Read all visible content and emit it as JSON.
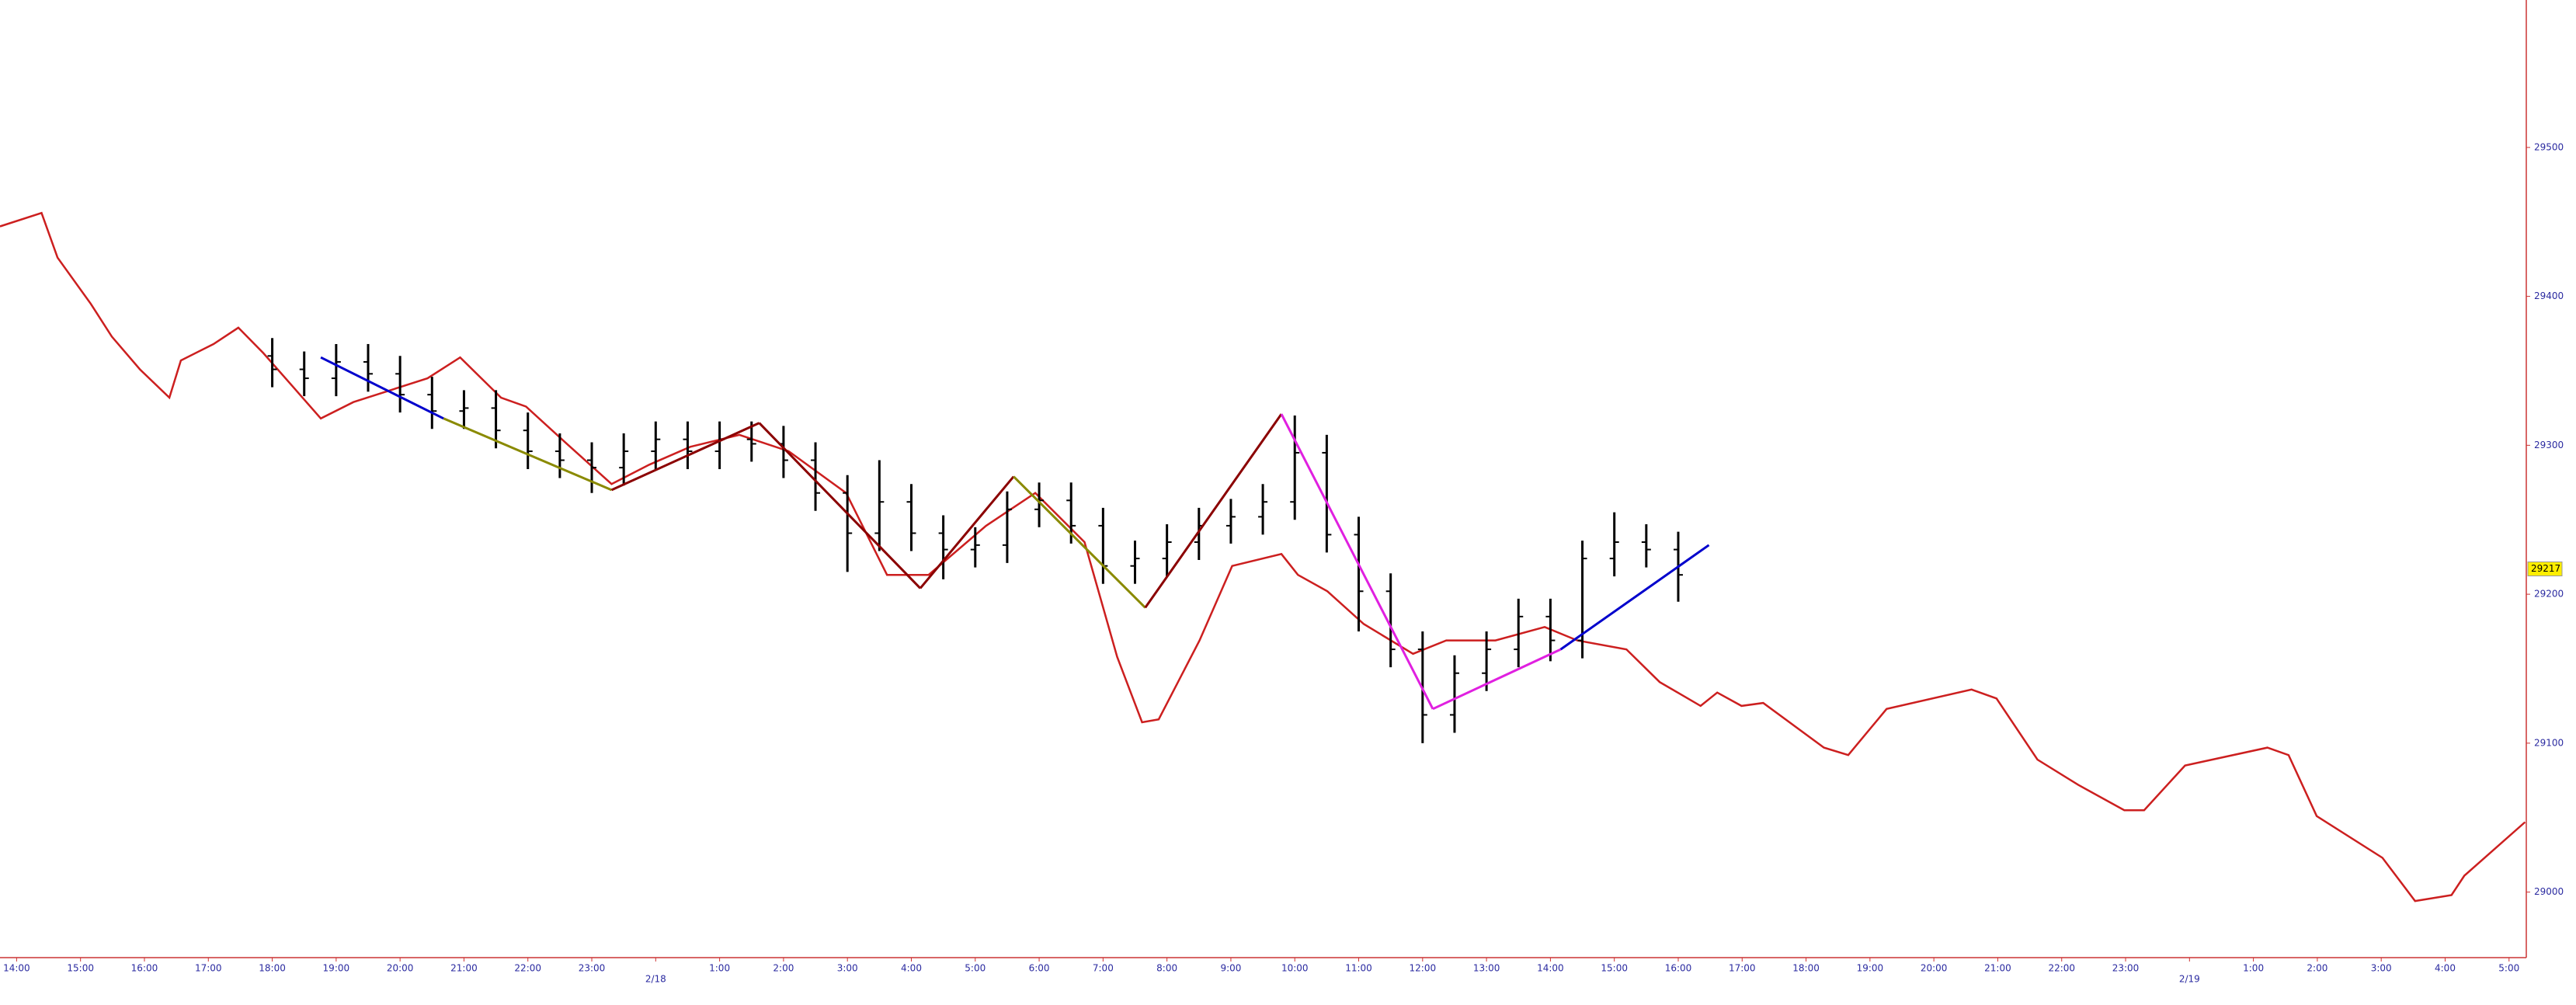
{
  "chart_data": {
    "type": "ohlc",
    "xlim": [
      -0.26,
      39.27
    ],
    "ylim": [
      28956,
      29599
    ],
    "yticks": [
      29000,
      29100,
      29200,
      29300,
      29400,
      29500
    ],
    "xticks": [
      {
        "value": 0,
        "label": "14:00"
      },
      {
        "value": 1,
        "label": "15:00"
      },
      {
        "value": 2,
        "label": "16:00"
      },
      {
        "value": 3,
        "label": "17:00"
      },
      {
        "value": 4,
        "label": "18:00"
      },
      {
        "value": 5,
        "label": "19:00"
      },
      {
        "value": 6,
        "label": "20:00"
      },
      {
        "value": 7,
        "label": "21:00"
      },
      {
        "value": 8,
        "label": "22:00"
      },
      {
        "value": 9,
        "label": "23:00"
      },
      {
        "value": 11,
        "label": "1:00"
      },
      {
        "value": 12,
        "label": "2:00"
      },
      {
        "value": 13,
        "label": "3:00"
      },
      {
        "value": 14,
        "label": "4:00"
      },
      {
        "value": 15,
        "label": "5:00"
      },
      {
        "value": 16,
        "label": "6:00"
      },
      {
        "value": 17,
        "label": "7:00"
      },
      {
        "value": 18,
        "label": "8:00"
      },
      {
        "value": 19,
        "label": "9:00"
      },
      {
        "value": 20,
        "label": "10:00"
      },
      {
        "value": 21,
        "label": "11:00"
      },
      {
        "value": 22,
        "label": "12:00"
      },
      {
        "value": 23,
        "label": "13:00"
      },
      {
        "value": 24,
        "label": "14:00"
      },
      {
        "value": 25,
        "label": "15:00"
      },
      {
        "value": 26,
        "label": "16:00"
      },
      {
        "value": 27,
        "label": "17:00"
      },
      {
        "value": 28,
        "label": "18:00"
      },
      {
        "value": 29,
        "label": "19:00"
      },
      {
        "value": 30,
        "label": "20:00"
      },
      {
        "value": 31,
        "label": "21:00"
      },
      {
        "value": 32,
        "label": "22:00"
      },
      {
        "value": 33,
        "label": "23:00"
      },
      {
        "value": 35,
        "label": "1:00"
      },
      {
        "value": 36,
        "label": "2:00"
      },
      {
        "value": 37,
        "label": "3:00"
      },
      {
        "value": 38,
        "label": "4:00"
      },
      {
        "value": 39,
        "label": "5:00"
      }
    ],
    "x_date_labels": [
      {
        "value": 10,
        "label": "2/18"
      },
      {
        "value": 34,
        "label": "2/19"
      }
    ],
    "last_price": 29217,
    "bar_color": "#000000",
    "axis_color": "#cc3333",
    "tick_label_color": "#2a2aa0",
    "last_price_color": "#ffee00",
    "bars": {
      "x": [
        4,
        4.5,
        5,
        5.5,
        6,
        6.5,
        7,
        7.5,
        8,
        8.5,
        9,
        9.5,
        10,
        10.5,
        11,
        11.5,
        12,
        12.5,
        13,
        13.5,
        14,
        14.5,
        15,
        15.5,
        16,
        16.5,
        17,
        17.5,
        18,
        18.5,
        19,
        19.5,
        20,
        20.5,
        21,
        21.5,
        22,
        22.5,
        23,
        23.5,
        24,
        24.5,
        25,
        25.5,
        26
      ],
      "open": [
        29360,
        29351,
        29345,
        29356,
        29348,
        29334,
        29323,
        29325,
        29310,
        29296,
        29290,
        29285,
        29296,
        29304,
        29296,
        29304,
        29301,
        29290,
        29268,
        29241,
        29262,
        29241,
        29230,
        29233,
        29257,
        29263,
        29246,
        29219,
        29224,
        29235,
        29246,
        29252,
        29262,
        29295,
        29240,
        29202,
        29163,
        29119,
        29147,
        29163,
        29185,
        29169,
        29224,
        29235,
        29230
      ],
      "high": [
        29372,
        29363,
        29368,
        29368,
        29360,
        29346,
        29337,
        29337,
        29322,
        29308,
        29302,
        29308,
        29316,
        29316,
        29316,
        29316,
        29313,
        29302,
        29280,
        29290,
        29274,
        29253,
        29245,
        29269,
        29275,
        29275,
        29258,
        29236,
        29247,
        29258,
        29264,
        29274,
        29320,
        29307,
        29252,
        29214,
        29175,
        29159,
        29175,
        29197,
        29197,
        29236,
        29255,
        29247,
        29242
      ],
      "low": [
        29339,
        29333,
        29333,
        29336,
        29322,
        29311,
        29311,
        29298,
        29284,
        29278,
        29268,
        29273,
        29284,
        29284,
        29284,
        29289,
        29278,
        29256,
        29215,
        29229,
        29229,
        29210,
        29218,
        29221,
        29245,
        29234,
        29207,
        29207,
        29212,
        29223,
        29234,
        29240,
        29250,
        29228,
        29175,
        29151,
        29100,
        29107,
        29135,
        29151,
        29155,
        29157,
        29212,
        29218,
        29195
      ],
      "close": [
        29351,
        29345,
        29356,
        29348,
        29334,
        29323,
        29325,
        29310,
        29296,
        29290,
        29285,
        29296,
        29304,
        29296,
        29304,
        29301,
        29290,
        29268,
        29241,
        29262,
        29241,
        29230,
        29233,
        29257,
        29263,
        29246,
        29219,
        29224,
        29235,
        29246,
        29252,
        29262,
        29295,
        29240,
        29202,
        29163,
        29119,
        29147,
        29163,
        29185,
        29169,
        29224,
        29235,
        29230,
        29213
      ]
    },
    "lines": [
      {
        "color": "#cc1f1f",
        "x": [
          -0.26,
          0.39,
          0.64,
          1.16,
          1.49,
          1.93,
          2.39,
          2.57,
          3.08,
          3.47,
          3.86,
          4.76,
          5.27,
          6.43,
          6.94,
          7.58,
          7.97,
          8.61,
          9.31,
          9.9,
          10.54,
          11.31,
          12.08,
          12.98,
          13.62,
          14.27,
          15.17,
          15.94,
          16.71,
          17.22,
          17.61,
          17.87,
          18.51,
          19.02,
          19.79,
          20.05,
          20.51,
          21.08,
          21.85,
          22.37,
          23.14,
          23.91,
          24.42,
          25.19,
          25.71,
          26.35,
          26.61,
          26.99,
          27.33,
          28.28,
          28.66,
          29.26,
          30.59,
          30.98,
          31.62,
          32.26,
          32.98,
          33.29,
          33.93,
          35.22,
          35.55,
          35.99,
          37.02,
          37.53,
          38.1,
          38.3,
          39.25
        ],
        "values": [
          29447,
          29456,
          29426,
          29395,
          29373,
          29351,
          29332,
          29357,
          29368,
          29379,
          29362,
          29318,
          29329,
          29345,
          29359,
          29332,
          29326,
          29301,
          29274,
          29287,
          29299,
          29307,
          29296,
          29268,
          29213,
          29213,
          29246,
          29268,
          29235,
          29158,
          29114,
          29116,
          29169,
          29219,
          29227,
          29213,
          29202,
          29180,
          29160,
          29169,
          29169,
          29178,
          29169,
          29163,
          29141,
          29125,
          29134,
          29125,
          29127,
          29097,
          29092,
          29123,
          29136,
          29130,
          29089,
          29072,
          29055,
          29055,
          29085,
          29097,
          29092,
          29051,
          29023,
          28994,
          28998,
          29011,
          29047
        ]
      }
    ],
    "zigzag": [
      {
        "color": "#0000cc",
        "x": [
          4.76,
          6.68
        ],
        "values": [
          29359,
          29318
        ]
      },
      {
        "color": "#8a8a00",
        "x": [
          6.68,
          9.31
        ],
        "values": [
          29318,
          29270
        ]
      },
      {
        "color": "#8b0000",
        "x": [
          9.31,
          11.62
        ],
        "values": [
          29270,
          29315
        ]
      },
      {
        "color": "#8b0000",
        "x": [
          11.62,
          14.14
        ],
        "values": [
          29315,
          29204
        ]
      },
      {
        "color": "#8b0000",
        "x": [
          14.14,
          15.6
        ],
        "values": [
          29204,
          29279
        ]
      },
      {
        "color": "#8a8a00",
        "x": [
          15.6,
          17.66
        ],
        "values": [
          29279,
          29191
        ]
      },
      {
        "color": "#8b0000",
        "x": [
          17.66,
          19.79
        ],
        "values": [
          29191,
          29321
        ]
      },
      {
        "color": "#e020e0",
        "x": [
          19.79,
          22.16
        ],
        "values": [
          29321,
          29123
        ]
      },
      {
        "color": "#e020e0",
        "x": [
          22.16,
          24.16
        ],
        "values": [
          29123,
          29163
        ]
      },
      {
        "color": "#0000cc",
        "x": [
          24.16,
          26.48
        ],
        "values": [
          29163,
          29233
        ]
      }
    ]
  }
}
